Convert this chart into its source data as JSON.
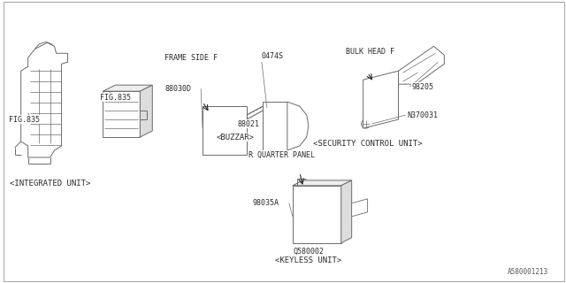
{
  "bg_color": "#ffffff",
  "line_color": "#6a6a6a",
  "text_color": "#2a2a2a",
  "fig_width": 6.4,
  "fig_height": 3.2,
  "dpi": 100,
  "part_number": "A580001213",
  "labels": {
    "integrated_unit": "<INTEGRATED UNIT>",
    "buzzar": "<BUZZAR>",
    "security_control": "<SECURITY CONTROL UNIT>",
    "keyless_unit": "<KEYLESS UNIT>",
    "fig835_left": "FIG.835",
    "fig835_right": "FIG.835",
    "frame_side_f": "FRAME SIDE F",
    "bulk_head_f": "BULK HEAD F",
    "r_quarter_panel": "R QUARTER PANEL",
    "p88030d": "88030D",
    "p88021": "88021",
    "p0474s": "0474S",
    "p98205": "98205",
    "pn370031": "N370031",
    "p98035a": "98035A",
    "pq580002": "Q580002"
  },
  "font_size": 6.0,
  "lw": 0.7
}
